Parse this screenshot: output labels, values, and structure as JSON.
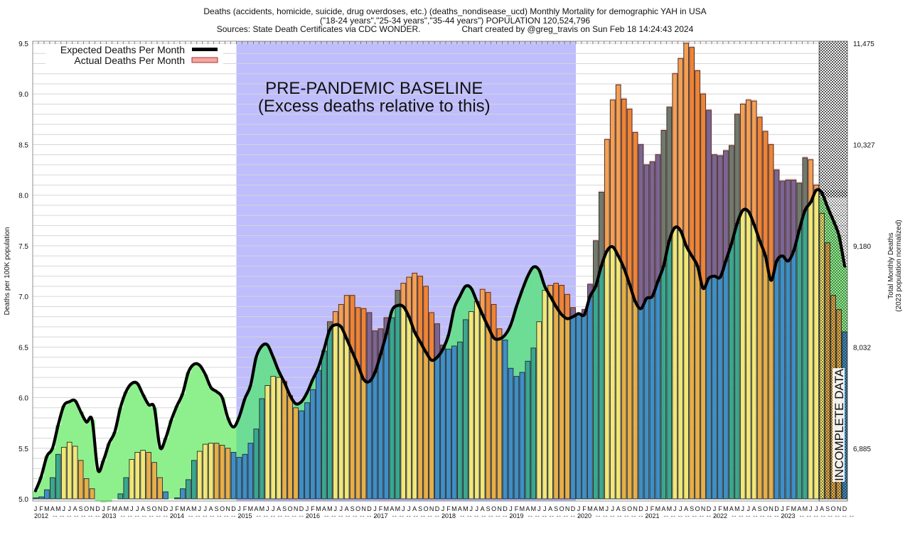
{
  "header": {
    "title_line1": "Deaths (accidents, homicide, suicide, drug overdoses, etc.) (deaths_nondisease_ucd) Monthly Mortality for demographic YAH in USA",
    "title_line2": "(\"18-24 years\",\"25-34 years\",\"35-44 years\") POPULATION 120,524,796",
    "sources": "Sources: State Death Certificates via CDC WONDER.",
    "credit": "Chart created by @greg_travis on Sun Feb 18 14:24:43 2024"
  },
  "chart_data": {
    "type": "bar",
    "title": "Deaths (accidents, homicide, suicide, drug overdoses, etc.) (deaths_nondisease_ucd) Monthly Mortality for demographic YAH in USA",
    "ylabel": "Deaths per 100K population",
    "ylabel_right": "Total Monthly Deaths",
    "ylabel_right_sub": "(2023 population normalized)",
    "ylim": [
      5.0,
      9.5
    ],
    "yticks": [
      "5.0",
      "5.5",
      "6.0",
      "6.5",
      "7.0",
      "7.5",
      "8.0",
      "8.5",
      "9.0",
      "9.5"
    ],
    "yticks_right": [
      "6,885",
      "8,032",
      "9,180",
      "10,327",
      "11,475"
    ],
    "yticks_right_values": [
      5.5,
      6.5,
      7.5,
      8.5,
      9.5
    ],
    "grid": true,
    "legend_position": "top-left",
    "legend": [
      {
        "label": "Expected Deaths Per Month",
        "color": "#000000",
        "kind": "line"
      },
      {
        "label": "Actual Deaths Per Month",
        "color": "#f4a6a0",
        "kind": "box"
      }
    ],
    "month_labels": [
      "J",
      "F",
      "M",
      "A",
      "M",
      "J",
      "J",
      "A",
      "S",
      "O",
      "N",
      "D"
    ],
    "years": [
      "2012",
      "2013",
      "2014",
      "2015",
      "2016",
      "2017",
      "2018",
      "2019",
      "2020",
      "2021",
      "2022",
      "2023"
    ],
    "annotations": {
      "baseline_title": "PRE-PANDEMIC BASELINE",
      "baseline_subtitle": "(Excess deaths relative to this)",
      "baseline_start_year": "2015",
      "baseline_end_year": "2019",
      "incomplete_label": "INCOMPLETE DATA",
      "incomplete_from": "2023-08"
    },
    "season_colors": {
      "winter": "#3f8fc6",
      "spring": "#3aa88e",
      "summer": "#f2e777",
      "fall": "#e8ae48"
    },
    "excess_colors": {
      "winter": "#7d6593",
      "spring": "#6f7a6c",
      "summer": "#f3a055",
      "fall": "#ee8436"
    },
    "deficit_color": "#8ef08c",
    "deficit_color_baseline": "#6ddc94",
    "baseline_bg": "#bfbdfc",
    "series": [
      {
        "name": "Actual Deaths Per Month",
        "values": [
          5.01,
          5.02,
          5.09,
          5.21,
          5.44,
          5.51,
          5.56,
          5.52,
          5.38,
          5.2,
          5.1,
          4.98,
          4.96,
          4.97,
          5.0,
          5.05,
          5.21,
          5.39,
          5.46,
          5.48,
          5.46,
          5.36,
          5.21,
          5.07,
          5.0,
          5.01,
          5.1,
          5.19,
          5.38,
          5.47,
          5.54,
          5.55,
          5.55,
          5.53,
          5.5,
          5.46,
          5.41,
          5.44,
          5.55,
          5.69,
          5.99,
          6.12,
          6.21,
          6.2,
          6.16,
          6.02,
          5.9,
          5.87,
          5.95,
          6.08,
          6.27,
          6.46,
          6.75,
          6.85,
          6.92,
          7.01,
          7.01,
          6.89,
          6.88,
          6.84,
          6.66,
          6.68,
          6.79,
          6.79,
          7.06,
          7.13,
          7.19,
          7.23,
          7.2,
          7.1,
          6.84,
          6.73,
          6.52,
          6.48,
          6.51,
          6.55,
          6.77,
          6.85,
          6.95,
          7.07,
          7.04,
          6.92,
          6.68,
          6.57,
          6.29,
          6.21,
          6.25,
          6.36,
          6.49,
          6.75,
          7.06,
          7.11,
          7.13,
          7.11,
          7.02,
          6.89,
          6.83,
          6.87,
          7.12,
          7.55,
          8.03,
          8.55,
          8.94,
          9.09,
          8.95,
          8.85,
          8.62,
          8.5,
          8.3,
          8.33,
          8.4,
          8.64,
          8.87,
          9.2,
          9.35,
          9.5,
          9.46,
          9.23,
          9.0,
          8.84,
          8.4,
          8.39,
          8.44,
          8.49,
          8.8,
          8.9,
          8.94,
          8.93,
          8.77,
          8.63,
          8.5,
          8.25,
          8.14,
          8.15,
          8.15,
          8.12,
          8.37,
          8.35,
          8.1,
          7.82,
          7.53,
          7.01,
          6.87,
          6.65
        ]
      },
      {
        "name": "Expected Deaths Per Month",
        "values": [
          5.08,
          5.22,
          5.42,
          5.5,
          5.73,
          5.92,
          5.96,
          5.97,
          5.86,
          5.76,
          5.78,
          5.29,
          5.38,
          5.55,
          5.66,
          5.9,
          6.06,
          6.14,
          6.14,
          6.03,
          5.93,
          5.9,
          5.51,
          5.6,
          5.78,
          5.92,
          6.04,
          6.25,
          6.33,
          6.32,
          6.23,
          6.1,
          6.06,
          6.0,
          5.8,
          5.71,
          5.81,
          5.99,
          6.12,
          6.4,
          6.51,
          6.52,
          6.4,
          6.26,
          6.15,
          6.02,
          5.94,
          5.96,
          6.05,
          6.18,
          6.3,
          6.48,
          6.67,
          6.72,
          6.7,
          6.58,
          6.45,
          6.32,
          6.18,
          6.16,
          6.25,
          6.43,
          6.63,
          6.86,
          6.91,
          6.9,
          6.8,
          6.65,
          6.55,
          6.45,
          6.37,
          6.4,
          6.48,
          6.62,
          6.88,
          7.0,
          7.1,
          7.08,
          6.95,
          6.82,
          6.7,
          6.59,
          6.58,
          6.62,
          6.72,
          6.9,
          7.06,
          7.2,
          7.29,
          7.26,
          7.1,
          7.0,
          6.9,
          6.82,
          6.78,
          6.8,
          6.83,
          6.82,
          7.0,
          7.1,
          7.3,
          7.45,
          7.49,
          7.4,
          7.28,
          7.12,
          6.95,
          6.88,
          6.98,
          7.0,
          7.15,
          7.3,
          7.55,
          7.68,
          7.65,
          7.5,
          7.4,
          7.3,
          7.08,
          7.18,
          7.2,
          7.19,
          7.35,
          7.52,
          7.72,
          7.85,
          7.84,
          7.71,
          7.55,
          7.4,
          7.16,
          7.35,
          7.4,
          7.35,
          7.45,
          7.66,
          7.85,
          7.93,
          8.05,
          8.02,
          7.88,
          7.75,
          7.6,
          7.3
        ]
      }
    ]
  }
}
